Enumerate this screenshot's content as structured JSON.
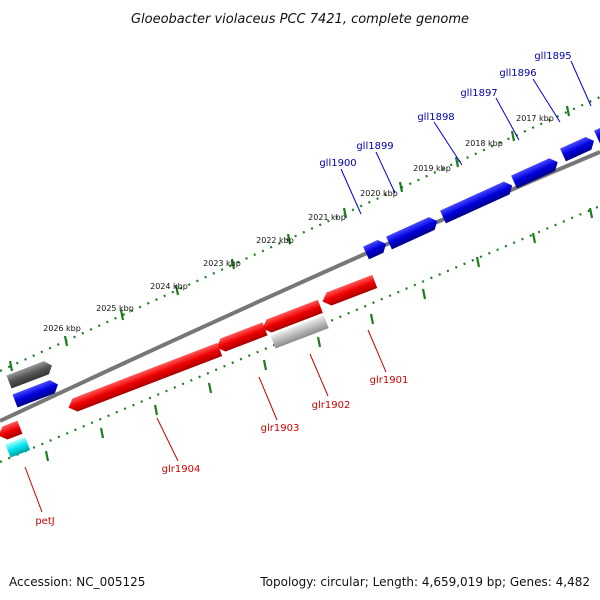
{
  "title": "Gloeobacter violaceus PCC 7421, complete genome",
  "footer": {
    "accession": "Accession: NC_005125",
    "topology": "Topology: circular; Length: 4,659,019 bp; Genes: 4,482"
  },
  "colors": {
    "forward_gene": "#0000dd",
    "reverse_gene": "#ee0000",
    "rna_gene": "#00e5ee",
    "pseudo_gene": "#555555",
    "other_gene": "#bbbbbb",
    "backbone": "#777777",
    "ticks": "#1e7d1e",
    "forward_label": "#0000aa",
    "reverse_label": "#cc0000"
  },
  "kbp_labels": [
    "2017 kbp",
    "2018 kbp",
    "2019 kbp",
    "2020 kbp",
    "2021 kbp",
    "2022 kbp",
    "2023 kbp",
    "2024 kbp",
    "2025 kbp",
    "2026 kbp"
  ],
  "forward_genes": [
    "gll1895",
    "gll1896",
    "gll1897",
    "gll1898",
    "gll1899",
    "gll1900"
  ],
  "reverse_genes": [
    "glr1901",
    "glr1902",
    "glr1903",
    "glr1904",
    "petJ"
  ]
}
